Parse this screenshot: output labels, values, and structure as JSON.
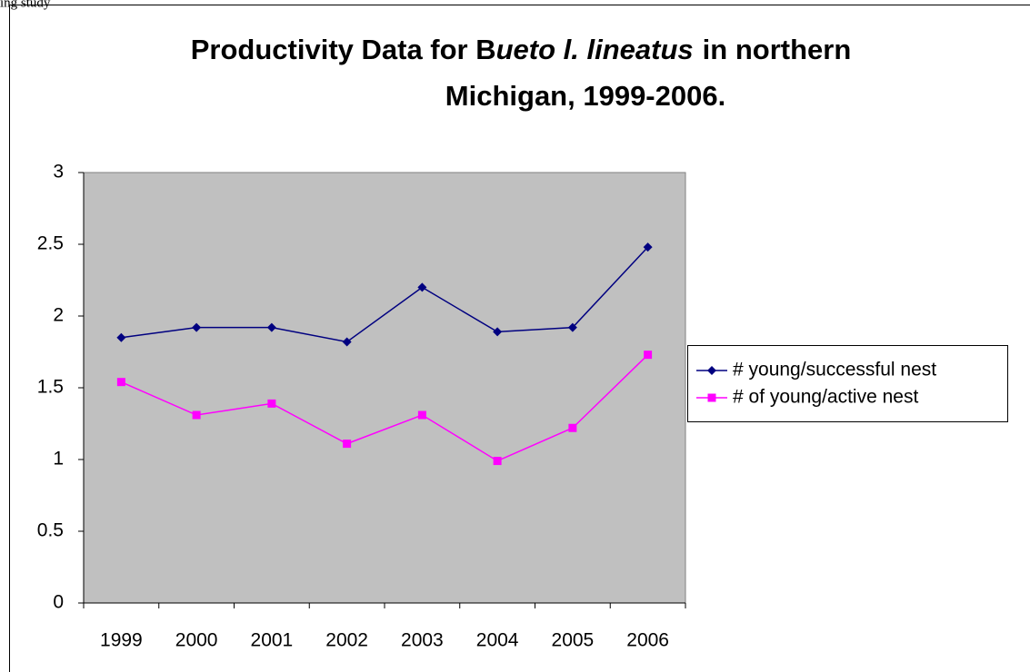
{
  "caption": "ing study",
  "chart_data": {
    "type": "line",
    "title_parts": [
      "Productivity Data for B",
      "ueto l. lineatus",
      "in northern",
      "Michigan, 1999-2006."
    ],
    "categories": [
      "1999",
      "2000",
      "2001",
      "2002",
      "2003",
      "2004",
      "2005",
      "2006"
    ],
    "series": [
      {
        "name": "# young/successful nest",
        "color": "#000080",
        "marker": "diamond",
        "values": [
          1.85,
          1.92,
          1.92,
          1.82,
          2.2,
          1.89,
          1.92,
          2.48
        ]
      },
      {
        "name": "# of young/active nest",
        "color": "#ff00ff",
        "marker": "square",
        "values": [
          1.54,
          1.31,
          1.39,
          1.11,
          1.31,
          0.99,
          1.22,
          1.73
        ]
      }
    ],
    "ylim": [
      0,
      3
    ],
    "yticks": [
      0,
      0.5,
      1,
      1.5,
      2,
      2.5,
      3
    ],
    "grid": false,
    "legend": "right",
    "plot_background": "#c0c0c0"
  }
}
